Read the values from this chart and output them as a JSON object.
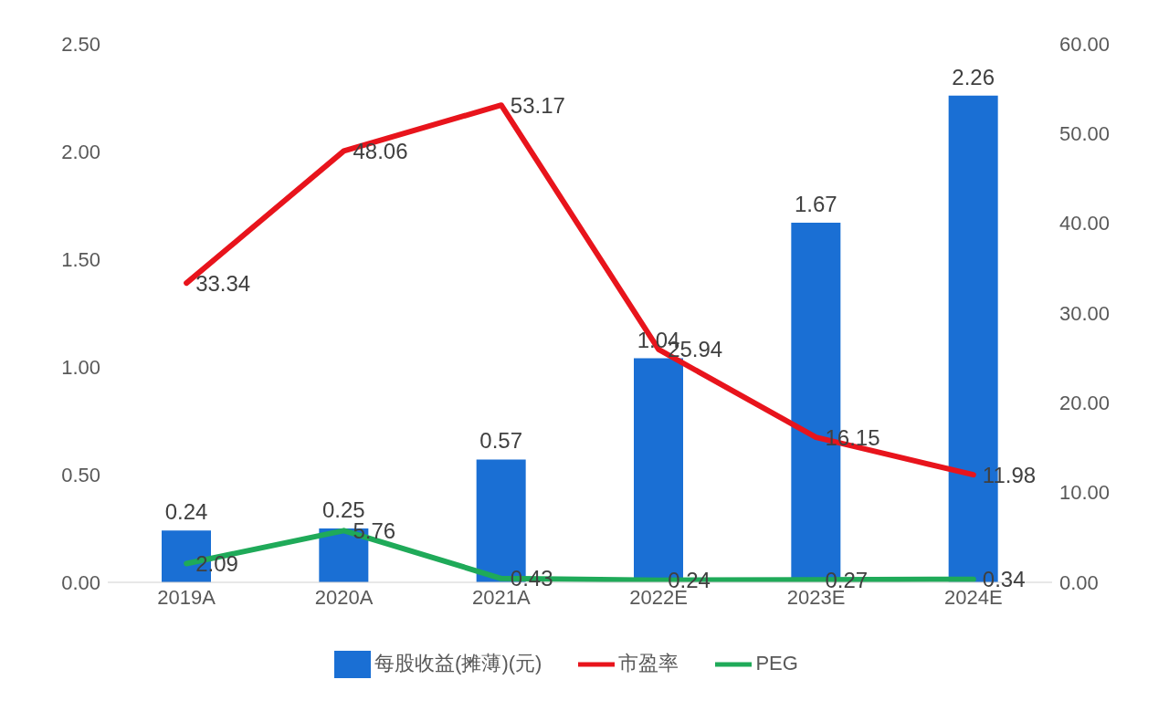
{
  "chart_data": {
    "type": "bar",
    "categories": [
      "2019A",
      "2020A",
      "2021A",
      "2022E",
      "2023E",
      "2024E"
    ],
    "series": [
      {
        "name": "每股收益(摊薄)(元)",
        "color": "#1a6fd4",
        "values": [
          0.24,
          0.25,
          0.57,
          1.04,
          1.67,
          2.26
        ]
      },
      {
        "name": "市盈率",
        "type": "line",
        "axis": "y2",
        "color": "#e8141c",
        "values": [
          33.34,
          48.06,
          53.17,
          25.94,
          16.15,
          11.98
        ]
      },
      {
        "name": "PEG",
        "type": "line",
        "axis": "y2",
        "color": "#1faa59",
        "values": [
          2.09,
          5.76,
          0.43,
          0.24,
          0.27,
          0.34
        ]
      }
    ],
    "ylim": [
      0,
      2.5
    ],
    "yticks": [
      {
        "value": 0,
        "label": "0.00"
      },
      {
        "value": 0.5,
        "label": "0.50"
      },
      {
        "value": 1,
        "label": "1.00"
      },
      {
        "value": 1.5,
        "label": "1.50"
      },
      {
        "value": 2,
        "label": "2.00"
      },
      {
        "value": 2.5,
        "label": "2.50"
      }
    ],
    "y2lim": [
      0,
      60
    ],
    "y2ticks": [
      {
        "value": 0,
        "label": "0.00"
      },
      {
        "value": 10,
        "label": "10.00"
      },
      {
        "value": 20,
        "label": "20.00"
      },
      {
        "value": 30,
        "label": "30.00"
      },
      {
        "value": 40,
        "label": "40.00"
      },
      {
        "value": 50,
        "label": "50.00"
      },
      {
        "value": 60,
        "label": "60.00"
      }
    ],
    "data_labels": true,
    "legend": "bottom",
    "grid": false,
    "marker": "none",
    "line_style": "solid"
  }
}
